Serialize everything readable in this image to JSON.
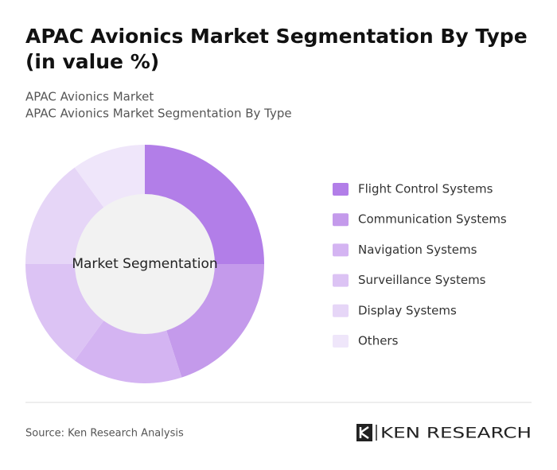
{
  "chart_data": {
    "type": "donut",
    "title": "APAC Avionics Market Segmentation By Type (in value %)",
    "subtitle": [
      "APAC Avionics Market",
      "APAC Avionics Market Segmentation By Type"
    ],
    "center_label": "Market Segmentation",
    "categories": [
      "Flight Control Systems",
      "Communication Systems",
      "Navigation Systems",
      "Surveillance Systems",
      "Display Systems",
      "Others"
    ],
    "values": [
      25,
      20,
      15,
      15,
      15,
      10
    ],
    "colors": [
      "#b27ee8",
      "#c49aeb",
      "#d4b4f2",
      "#dcc3f4",
      "#e6d6f7",
      "#efe6fa"
    ],
    "legend": "right"
  },
  "footer": {
    "source": "Source: Ken Research Analysis",
    "logo": "KEN RESEARCH"
  }
}
